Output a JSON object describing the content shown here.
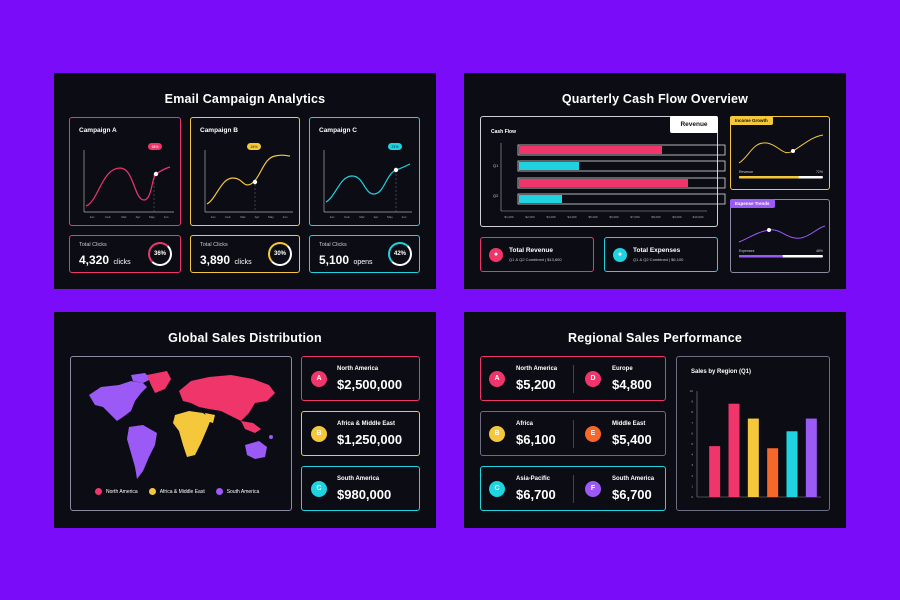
{
  "email": {
    "title": "Email Campaign Analytics",
    "campaigns": [
      {
        "name": "Campaign A",
        "badge": "18%",
        "x_ticks": [
          "Jan",
          "Feb",
          "Mar",
          "Apr",
          "May",
          "Jun"
        ],
        "metric_label": "Total Clicks",
        "metric_value": "4,320",
        "metric_unit": "clicks",
        "percent": "36%",
        "color": "#f0356b"
      },
      {
        "name": "Campaign B",
        "badge": "24%",
        "x_ticks": [
          "Jan",
          "Feb",
          "Mar",
          "Apr",
          "May",
          "Jun"
        ],
        "metric_label": "Total Clicks",
        "metric_value": "3,890",
        "metric_unit": "clicks",
        "percent": "30%",
        "color": "#f5c83c"
      },
      {
        "name": "Campaign C",
        "badge": "21%",
        "x_ticks": [
          "Jan",
          "Feb",
          "Mar",
          "Apr",
          "May",
          "Jun"
        ],
        "metric_label": "Total Clicks",
        "metric_value": "5,100",
        "metric_unit": "opens",
        "percent": "42%",
        "color": "#1fd3e0"
      }
    ]
  },
  "cashflow": {
    "title": "Quarterly Cash Flow Overview",
    "chart_title": "Cash Flow",
    "tag": "Revenue",
    "rows": [
      "Q1",
      "Q2"
    ],
    "x_ticks": [
      "$1,000",
      "$2,000",
      "$3,000",
      "$4,000",
      "$5,000",
      "$6,000",
      "$7,000",
      "$8,000",
      "$9,000",
      "$10,000"
    ],
    "revenue": {
      "label": "Total Revenue",
      "sub": "Q1 & Q2 Combined | $13,600"
    },
    "expenses": {
      "label": "Total Expenses",
      "sub": "Q1 & Q2 Combined | $6,100"
    },
    "income_box": {
      "title": "Income Growth",
      "left": "Revenue",
      "right": "72%"
    },
    "expense_box": {
      "title": "Expense Trends",
      "left": "Expenses",
      "right": "48%"
    }
  },
  "global": {
    "title": "Global Sales Distribution",
    "legend": [
      {
        "label": "North America",
        "color": "#f0356b"
      },
      {
        "label": "Africa & Middle East",
        "color": "#f5c83c"
      },
      {
        "label": "South America",
        "color": "#9b59f5"
      }
    ],
    "cards": [
      {
        "letter": "A",
        "region": "North America",
        "amount": "$2,500,000",
        "color": "#f0356b"
      },
      {
        "letter": "B",
        "region": "Africa & Middle East",
        "amount": "$1,250,000",
        "color": "#f5c83c"
      },
      {
        "letter": "C",
        "region": "South America",
        "amount": "$980,000",
        "color": "#1fd3e0"
      }
    ]
  },
  "regional": {
    "title": "Regional Sales Performance",
    "cards": [
      {
        "letter": "A",
        "region": "North America",
        "amount": "$5,200",
        "color": "#f0356b"
      },
      {
        "letter": "D",
        "region": "Europe",
        "amount": "$4,800",
        "color": "#f0356b"
      },
      {
        "letter": "B",
        "region": "Africa",
        "amount": "$6,100",
        "color": "#f5c83c"
      },
      {
        "letter": "E",
        "region": "Middle East",
        "amount": "$5,400",
        "color": "#f5682a"
      },
      {
        "letter": "C",
        "region": "Asia-Pacific",
        "amount": "$6,700",
        "color": "#1fd3e0"
      },
      {
        "letter": "F",
        "region": "South America",
        "amount": "$6,700",
        "color": "#9b59f5"
      }
    ]
  },
  "chart_data": {
    "type": "bar",
    "title": "Sales by Region (Q1)",
    "values": [
      4.8,
      8.8,
      7.4,
      4.6,
      6.2,
      7.4
    ],
    "colors": [
      "#f0356b",
      "#f0356b",
      "#f5c83c",
      "#f5682a",
      "#1fd3e0",
      "#9b59f5"
    ],
    "ylim": [
      0,
      10
    ],
    "yticks": [
      "10",
      "9",
      "8",
      "7",
      "6",
      "5",
      "4",
      "3",
      "2",
      "1",
      "0"
    ]
  }
}
